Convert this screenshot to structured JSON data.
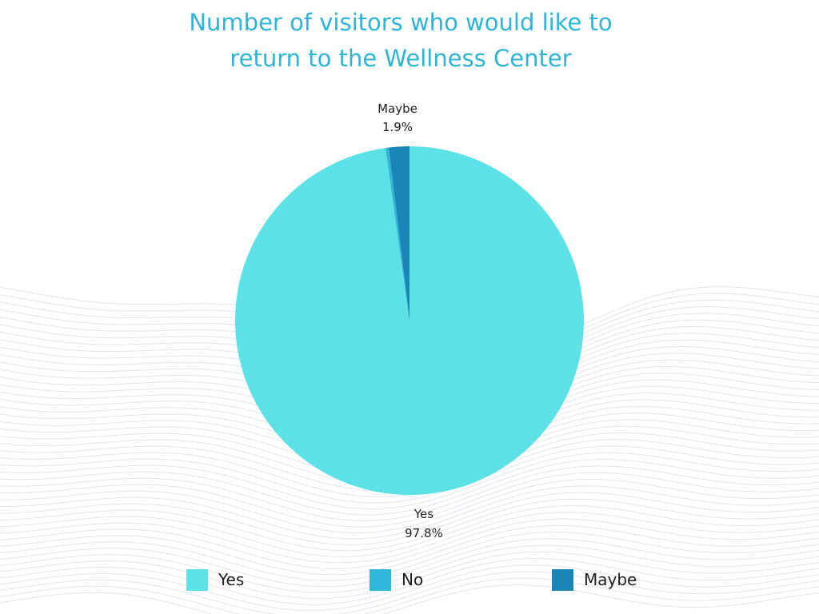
{
  "chart_data": {
    "type": "pie",
    "title_lines": [
      "Number of visitors who would like to",
      "return to the Wellness Center"
    ],
    "slices": [
      {
        "label": "Yes",
        "value": 97.8,
        "value_label": "97.8%",
        "color": "#5ce1e6"
      },
      {
        "label": "No",
        "value": 0.3,
        "value_label": "",
        "color": "#31b6d7"
      },
      {
        "label": "Maybe",
        "value": 1.9,
        "value_label": "1.9%",
        "color": "#1a86b7"
      }
    ],
    "legend_position": "bottom",
    "start_angle": "12 o'clock, counter-clockwise"
  },
  "colors": {
    "title": "#2eb4d6",
    "background_lines": "#dde6ee"
  }
}
